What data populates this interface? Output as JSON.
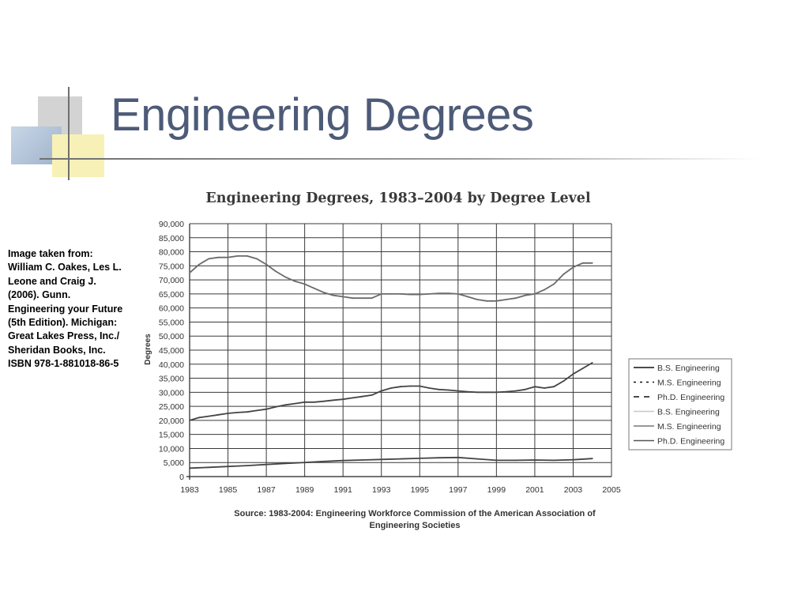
{
  "slide": {
    "title": "Engineering Degrees",
    "attribution_lines": [
      "Image taken from:",
      "William C. Oakes, Les L.",
      "Leone and Craig J.",
      "(2006). Gunn.",
      "Engineering your Future",
      "(5th Edition). Michigan:",
      "Great Lakes Press, Inc./",
      "Sheridan Books, Inc.",
      "ISBN 978-1-881018-86-5"
    ]
  },
  "chart_data": {
    "type": "line",
    "title": "Engineering Degrees, 1983–2004 by Degree Level",
    "ylabel": "Degrees",
    "xlabel": "",
    "xlim": [
      1983,
      2005
    ],
    "ylim": [
      0,
      90000
    ],
    "x_ticks": [
      "1983",
      "1985",
      "1987",
      "1989",
      "1991",
      "1993",
      "1995",
      "1997",
      "1999",
      "2001",
      "2003",
      "2005"
    ],
    "y_ticks": [
      "0",
      "5,000",
      "10,000",
      "15,000",
      "20,000",
      "25,000",
      "30,000",
      "35,000",
      "40,000",
      "45,000",
      "50,000",
      "55,000",
      "60,000",
      "65,000",
      "70,000",
      "75,000",
      "80,000",
      "85,000",
      "90,000"
    ],
    "grid": true,
    "legend_position": "right",
    "source_lines": [
      "Source: 1983-2004: Engineering Workforce Commission of the American Association of",
      "Engineering Societies"
    ],
    "legend": [
      {
        "label": "B.S. Engineering",
        "color": "#111111",
        "dash": "solid"
      },
      {
        "label": "M.S. Engineering",
        "color": "#111111",
        "dash": "dotted"
      },
      {
        "label": "Ph.D. Engineering",
        "color": "#111111",
        "dash": "dashed"
      },
      {
        "label": "B.S. Engineering",
        "color": "#c8c8c8",
        "dash": "solid"
      },
      {
        "label": "M.S. Engineering",
        "color": "#777777",
        "dash": "solid"
      },
      {
        "label": "Ph.D. Engineering",
        "color": "#555555",
        "dash": "solid"
      }
    ],
    "series": [
      {
        "name": "B.S. Engineering",
        "color": "#6a6a6a",
        "points": [
          [
            1983,
            72500
          ],
          [
            1983.5,
            75500
          ],
          [
            1984,
            77500
          ],
          [
            1984.5,
            78000
          ],
          [
            1985,
            78000
          ],
          [
            1985.5,
            78500
          ],
          [
            1986,
            78500
          ],
          [
            1986.5,
            77500
          ],
          [
            1987,
            75500
          ],
          [
            1987.5,
            73000
          ],
          [
            1988,
            71000
          ],
          [
            1988.5,
            69500
          ],
          [
            1989,
            68500
          ],
          [
            1989.5,
            67000
          ],
          [
            1990,
            65500
          ],
          [
            1990.5,
            64500
          ],
          [
            1991,
            64000
          ],
          [
            1991.5,
            63500
          ],
          [
            1992,
            63500
          ],
          [
            1992.5,
            63500
          ],
          [
            1993,
            65000
          ],
          [
            1993.5,
            65000
          ],
          [
            1994,
            65000
          ],
          [
            1994.5,
            64800
          ],
          [
            1995,
            64800
          ],
          [
            1995.5,
            65000
          ],
          [
            1996,
            65200
          ],
          [
            1996.5,
            65200
          ],
          [
            1997,
            65000
          ],
          [
            1997.5,
            64000
          ],
          [
            1998,
            63000
          ],
          [
            1998.5,
            62500
          ],
          [
            1999,
            62500
          ],
          [
            1999.5,
            63000
          ],
          [
            2000,
            63500
          ],
          [
            2000.5,
            64500
          ],
          [
            2001,
            65000
          ],
          [
            2001.5,
            66500
          ],
          [
            2002,
            68500
          ],
          [
            2002.5,
            72000
          ],
          [
            2003,
            74500
          ],
          [
            2003.5,
            76000
          ],
          [
            2004,
            76000
          ]
        ]
      },
      {
        "name": "M.S. Engineering",
        "color": "#444444",
        "points": [
          [
            1983,
            20000
          ],
          [
            1983.5,
            21000
          ],
          [
            1984,
            21500
          ],
          [
            1984.5,
            22000
          ],
          [
            1985,
            22500
          ],
          [
            1985.5,
            22800
          ],
          [
            1986,
            23000
          ],
          [
            1986.5,
            23500
          ],
          [
            1987,
            24000
          ],
          [
            1987.5,
            24800
          ],
          [
            1988,
            25500
          ],
          [
            1988.5,
            26000
          ],
          [
            1989,
            26500
          ],
          [
            1989.5,
            26500
          ],
          [
            1990,
            26800
          ],
          [
            1990.5,
            27200
          ],
          [
            1991,
            27500
          ],
          [
            1991.5,
            28000
          ],
          [
            1992,
            28500
          ],
          [
            1992.5,
            29000
          ],
          [
            1993,
            30500
          ],
          [
            1993.5,
            31500
          ],
          [
            1994,
            32000
          ],
          [
            1994.5,
            32200
          ],
          [
            1995,
            32200
          ],
          [
            1995.5,
            31500
          ],
          [
            1996,
            31000
          ],
          [
            1996.5,
            30800
          ],
          [
            1997,
            30500
          ],
          [
            1997.5,
            30200
          ],
          [
            1998,
            30000
          ],
          [
            1998.5,
            30000
          ],
          [
            1999,
            30000
          ],
          [
            1999.5,
            30200
          ],
          [
            2000,
            30500
          ],
          [
            2000.5,
            31000
          ],
          [
            2001,
            32000
          ],
          [
            2001.5,
            31500
          ],
          [
            2002,
            32000
          ],
          [
            2002.5,
            34000
          ],
          [
            2003,
            36500
          ],
          [
            2003.5,
            38500
          ],
          [
            2004,
            40500
          ]
        ]
      },
      {
        "name": "Ph.D. Engineering",
        "color": "#444444",
        "points": [
          [
            1983,
            3000
          ],
          [
            1984,
            3300
          ],
          [
            1985,
            3600
          ],
          [
            1986,
            3900
          ],
          [
            1987,
            4300
          ],
          [
            1988,
            4700
          ],
          [
            1989,
            5000
          ],
          [
            1990,
            5400
          ],
          [
            1991,
            5700
          ],
          [
            1992,
            5900
          ],
          [
            1993,
            6100
          ],
          [
            1994,
            6300
          ],
          [
            1995,
            6500
          ],
          [
            1996,
            6700
          ],
          [
            1997,
            6800
          ],
          [
            1998,
            6300
          ],
          [
            1999,
            5800
          ],
          [
            2000,
            5800
          ],
          [
            2001,
            5900
          ],
          [
            2002,
            5800
          ],
          [
            2003,
            6000
          ],
          [
            2004,
            6400
          ]
        ]
      }
    ]
  }
}
